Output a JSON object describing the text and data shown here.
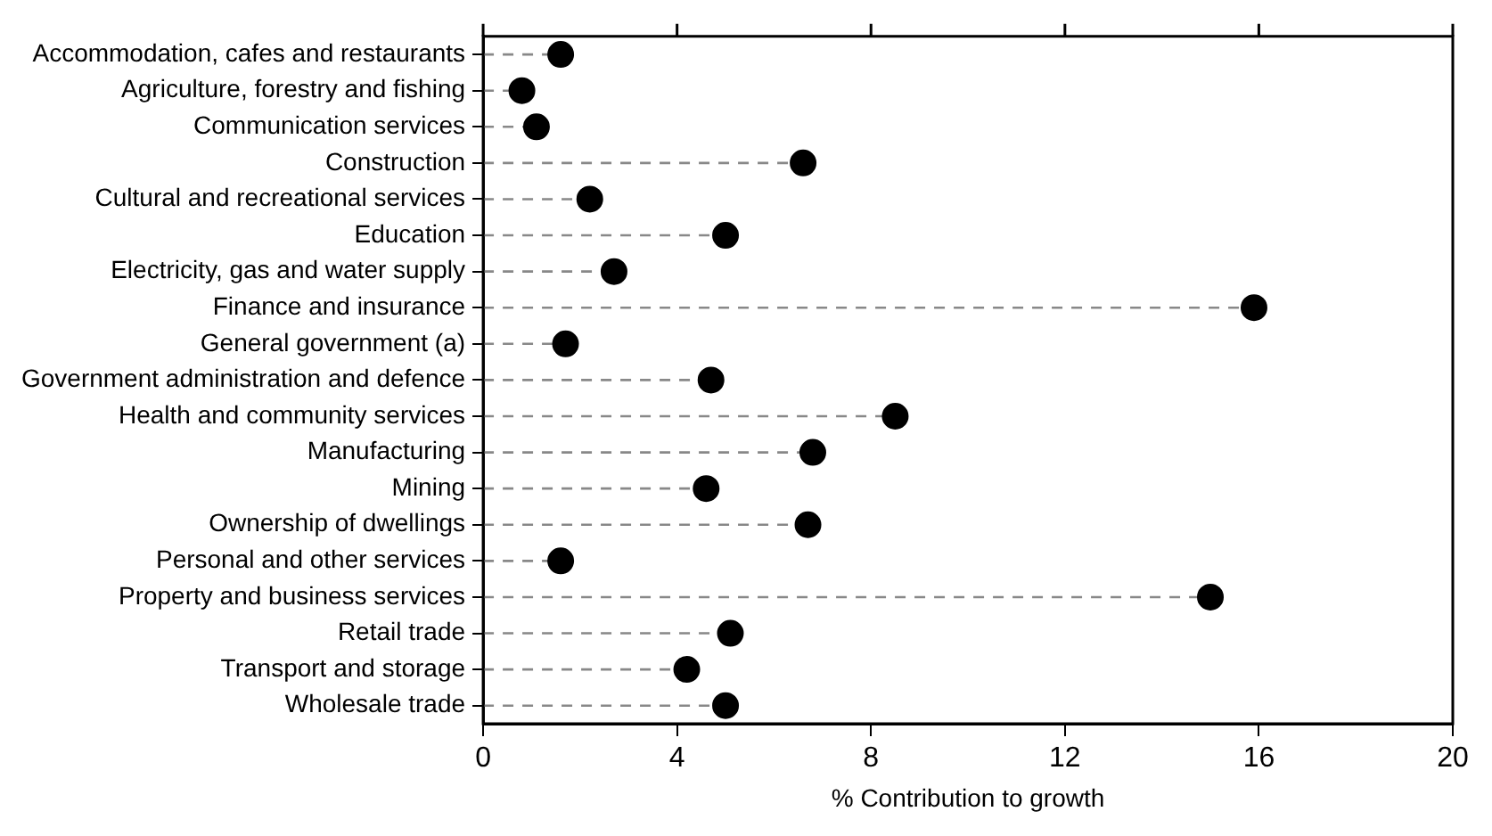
{
  "chart_data": {
    "type": "lollipop",
    "orientation": "horizontal",
    "xlabel": "% Contribution to growth",
    "categories": [
      "Accommodation, cafes and restaurants",
      "Agriculture, forestry and fishing",
      "Communication services",
      "Construction",
      "Cultural and recreational services",
      "Education",
      "Electricity, gas and water supply",
      "Finance and insurance",
      "General government (a)",
      "Government administration and defence",
      "Health and community services",
      "Manufacturing",
      "Mining",
      "Ownership of dwellings",
      "Personal and other services",
      "Property and business services",
      "Retail trade",
      "Transport and storage",
      "Wholesale trade"
    ],
    "values": [
      1.6,
      0.8,
      1.1,
      6.6,
      2.2,
      5.0,
      2.7,
      15.9,
      1.7,
      4.7,
      8.5,
      6.8,
      4.6,
      6.7,
      1.6,
      15.0,
      5.1,
      4.2,
      5.0
    ],
    "color": "#000000",
    "marker": "circle",
    "line_style": "dashed",
    "xlim": [
      0,
      20
    ],
    "xticks": [
      0,
      4,
      8,
      12,
      16,
      20
    ]
  }
}
